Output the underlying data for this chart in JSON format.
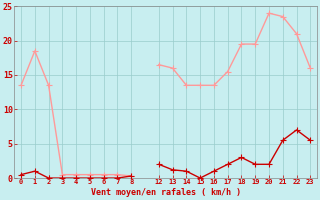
{
  "hours_left": [
    0,
    1,
    2,
    3,
    4,
    5,
    6,
    7,
    8
  ],
  "hours_right": [
    12,
    13,
    14,
    15,
    16,
    17,
    18,
    19,
    20,
    21,
    22,
    23
  ],
  "vent_moyen_left": [
    0.5,
    1.0,
    0.0,
    0.0,
    0.0,
    0.0,
    0.0,
    0.0,
    0.3
  ],
  "vent_moyen_right": [
    2.0,
    1.2,
    1.0,
    0.0,
    1.0,
    2.0,
    3.0,
    2.0,
    2.0,
    5.5,
    7.0,
    5.5
  ],
  "rafales_left": [
    13.5,
    18.5,
    13.5,
    0.5,
    0.5,
    0.5,
    0.5,
    0.5,
    0.3
  ],
  "rafales_right": [
    16.5,
    16.0,
    13.5,
    13.5,
    13.5,
    15.5,
    19.5,
    19.5,
    24.0,
    23.5,
    21.0,
    16.0
  ],
  "line_color_moyen": "#cc0000",
  "line_color_rafales": "#ff9999",
  "bg_color": "#c8eef0",
  "grid_color": "#99cccc",
  "xlabel": "Vent moyen/en rafales ( km/h )",
  "ylim": [
    0,
    25
  ],
  "yticks": [
    0,
    5,
    10,
    15,
    20,
    25
  ],
  "xticks_left": [
    0,
    1,
    2,
    3,
    4,
    5,
    6,
    7,
    8
  ],
  "xticks_right": [
    12,
    13,
    14,
    15,
    16,
    17,
    18,
    19,
    20,
    21,
    22,
    23
  ],
  "marker_size": 4,
  "linewidth": 1.0
}
